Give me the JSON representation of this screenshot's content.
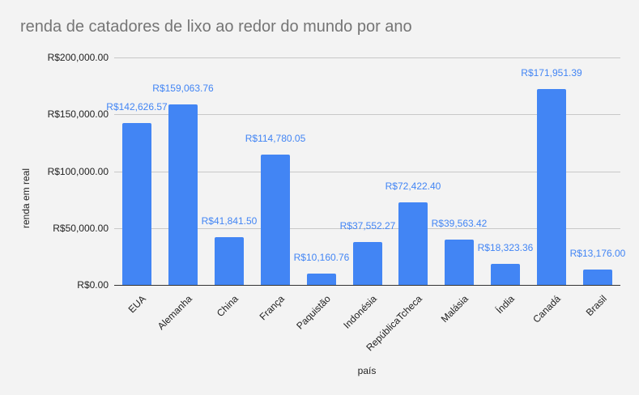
{
  "chart_data": {
    "type": "bar",
    "title": "renda de catadores de lixo ao redor do mundo por ano",
    "xlabel": "país",
    "ylabel": "renda em real",
    "ylim": [
      0,
      200000
    ],
    "yticks": [
      "R$0.00",
      "R$50,000.00",
      "R$100,000.00",
      "R$150,000.00",
      "R$200,000.00"
    ],
    "grid": true,
    "legend": "none",
    "color": "#4285f4",
    "categories": [
      "EUA",
      "Alemanha",
      "China",
      "França",
      "Paquistão",
      "Indonésia",
      "RepúblicaTcheca",
      "Malásia",
      "Índia",
      "Canadá",
      "Brasil"
    ],
    "values": [
      142626.57,
      159063.76,
      41841.5,
      114780.05,
      10160.76,
      37552.27,
      72422.4,
      39563.42,
      18323.36,
      171951.39,
      13176.0
    ],
    "data_labels": [
      "R$142,626.57",
      "R$159,063.76",
      "R$41,841.50",
      "R$114,780.05",
      "R$10,160.76",
      "R$37,552.27",
      "R$72,422.40",
      "R$39,563.42",
      "R$18,323.36",
      "R$171,951.39",
      "R$13,176.00"
    ]
  }
}
